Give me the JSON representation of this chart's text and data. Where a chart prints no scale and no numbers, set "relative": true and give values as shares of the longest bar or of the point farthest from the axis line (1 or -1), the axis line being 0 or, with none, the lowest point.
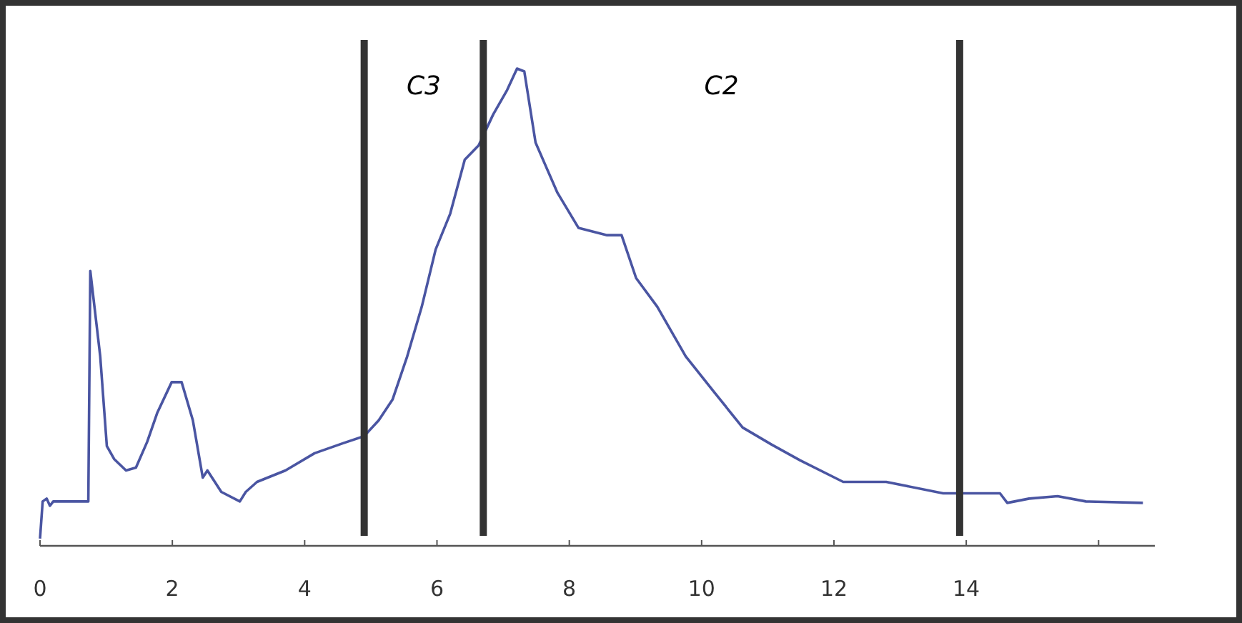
{
  "chart_data": {
    "type": "line",
    "relative": true,
    "xlim": [
      0,
      16.85
    ],
    "xticks": [
      0,
      2,
      4,
      6,
      8,
      10,
      12,
      14,
      {
        "value": 16,
        "label": null
      }
    ],
    "tick_labels": "x",
    "grid": false,
    "marker": "none",
    "line_style": "solid",
    "series": [
      {
        "color": "#4a55a2",
        "x": [
          0,
          0.04,
          0.1,
          0.15,
          0.2,
          0.73,
          0.76,
          0.91,
          1.01,
          1.12,
          1.3,
          1.45,
          1.62,
          1.77,
          1.99,
          2.14,
          2.31,
          2.46,
          2.53,
          2.74,
          3.02,
          3.11,
          3.28,
          3.71,
          4.15,
          4.58,
          4.9,
          5.12,
          5.33,
          5.55,
          5.77,
          5.98,
          6.2,
          6.42,
          6.63,
          6.85,
          7.06,
          7.21,
          7.32,
          7.49,
          7.82,
          8.14,
          8.57,
          8.79,
          9.01,
          9.33,
          9.76,
          10.19,
          10.62,
          11.06,
          11.49,
          12.14,
          12.79,
          13.65,
          14.51,
          14.62,
          14.95,
          15.38,
          15.81,
          16.67
        ],
        "values": [
          0.015,
          0.093,
          0.099,
          0.084,
          0.093,
          0.093,
          0.576,
          0.397,
          0.209,
          0.182,
          0.158,
          0.164,
          0.218,
          0.278,
          0.343,
          0.343,
          0.263,
          0.143,
          0.158,
          0.113,
          0.093,
          0.113,
          0.134,
          0.158,
          0.194,
          0.215,
          0.23,
          0.263,
          0.307,
          0.397,
          0.501,
          0.621,
          0.696,
          0.809,
          0.839,
          0.904,
          0.955,
          1.0,
          0.994,
          0.845,
          0.74,
          0.666,
          0.651,
          0.651,
          0.561,
          0.501,
          0.397,
          0.322,
          0.248,
          0.212,
          0.179,
          0.134,
          0.134,
          0.11,
          0.11,
          0.09,
          0.099,
          0.104,
          0.093,
          0.09
        ]
      }
    ],
    "ref_lines": [
      {
        "axis": "x",
        "value": 4.9,
        "color": "#333333"
      },
      {
        "axis": "x",
        "value": 6.7,
        "color": "#333333"
      },
      {
        "axis": "x",
        "value": 13.9,
        "color": "#333333"
      }
    ],
    "annotations": [
      "C3",
      "C2"
    ]
  }
}
